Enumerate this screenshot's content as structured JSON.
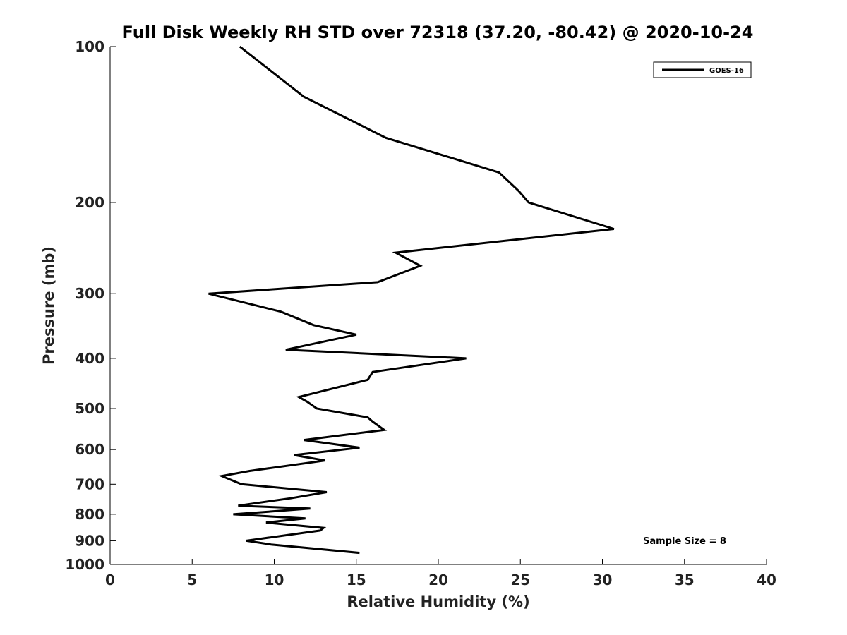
{
  "chart_data": {
    "type": "line",
    "title": "Full Disk Weekly RH STD over 72318 (37.20, -80.42) @ 2020-10-24",
    "xlabel": "Relative Humidity (%)",
    "ylabel": "Pressure (mb)",
    "xlim": [
      0,
      40
    ],
    "ylim": [
      100,
      1000
    ],
    "yscale": "log",
    "y_inverted": true,
    "grid": false,
    "legend_position": "top-right",
    "x_ticks": [
      "0",
      "5",
      "10",
      "15",
      "20",
      "25",
      "30",
      "35",
      "40"
    ],
    "y_ticks": [
      "100",
      "200",
      "300",
      "400",
      "500",
      "600",
      "700",
      "800",
      "900",
      "1000"
    ],
    "series": [
      {
        "name": "GOES-16",
        "color": "#000000",
        "x": [
          7.9,
          11.8,
          16.8,
          23.7,
          24.9,
          25.5,
          30.7,
          17.4,
          18.9,
          16.3,
          6.0,
          10.4,
          12.4,
          15.0,
          10.7,
          21.7,
          16.0,
          15.7,
          11.5,
          12.0,
          12.6,
          15.7,
          16.0,
          16.7,
          11.8,
          15.2,
          11.2,
          13.1,
          8.5,
          6.8,
          8.0,
          13.2,
          11.0,
          7.8,
          12.2,
          7.5,
          11.9,
          9.5,
          13.0,
          12.8,
          8.3,
          9.8,
          15.2
        ],
        "y": [
          100,
          125,
          150,
          175,
          190,
          200,
          225,
          250,
          265,
          285,
          300,
          325,
          345,
          360,
          385,
          400,
          425,
          440,
          475,
          485,
          500,
          520,
          530,
          550,
          575,
          595,
          615,
          630,
          660,
          675,
          700,
          725,
          745,
          770,
          780,
          800,
          815,
          830,
          850,
          860,
          900,
          915,
          950
        ]
      }
    ],
    "annotations": [
      "Sample Size = 8"
    ]
  }
}
